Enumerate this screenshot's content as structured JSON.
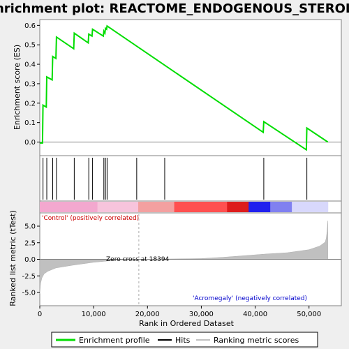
{
  "title": "Enrichment plot: REACTOME_ENDOGENOUS_STEROLS",
  "chart_data": [
    {
      "type": "line",
      "name": "enrichment-profile",
      "ylabel": "Enrichment score (ES)",
      "ylim": [
        -0.07,
        0.63
      ],
      "yticks": [
        0.0,
        0.1,
        0.2,
        0.3,
        0.4,
        0.5,
        0.6
      ],
      "ytick_labels": [
        "0.0",
        "0.1",
        "0.2",
        "0.3",
        "0.4",
        "0.5",
        "0.6"
      ],
      "xlim": [
        0,
        56000
      ],
      "points_x": [
        0,
        500,
        600,
        1200,
        1300,
        2300,
        2400,
        3000,
        3100,
        6300,
        6400,
        9000,
        9100,
        9700,
        9800,
        11800,
        11900,
        12100,
        12200,
        12400,
        12500,
        41500,
        41600,
        49500,
        49600,
        53500
      ],
      "points_y": [
        -0.005,
        -0.005,
        0.19,
        0.18,
        0.335,
        0.32,
        0.44,
        0.43,
        0.54,
        0.48,
        0.56,
        0.51,
        0.555,
        0.545,
        0.58,
        0.545,
        0.57,
        0.56,
        0.585,
        0.58,
        0.597,
        0.05,
        0.105,
        -0.04,
        0.072,
        0.0
      ],
      "color": "#00dd00"
    },
    {
      "type": "scatter",
      "name": "hits",
      "x": [
        600,
        1300,
        2400,
        3100,
        6400,
        9100,
        9800,
        11900,
        12200,
        12500,
        18000,
        23200,
        41600,
        49600
      ]
    },
    {
      "type": "area",
      "name": "ranking-metric",
      "xlabel": "Rank in Ordered Dataset",
      "ylabel": "Ranked list metric (tTest)",
      "ylim": [
        -7.0,
        7.0
      ],
      "yticks": [
        -5.0,
        -2.5,
        0.0,
        2.5,
        5.0
      ],
      "ytick_labels": [
        "-5.0",
        "-2.5",
        "0.0",
        "2.5",
        "5.0"
      ],
      "xticks": [
        0,
        10000,
        20000,
        30000,
        40000,
        50000
      ],
      "xtick_labels": [
        "0",
        "10,000",
        "20,000",
        "30,000",
        "40,000",
        "50,000"
      ],
      "x": [
        0,
        150,
        400,
        800,
        1500,
        3000,
        6000,
        10000,
        14000,
        18394,
        24000,
        30000,
        34000,
        38000,
        42000,
        46000,
        50000,
        52000,
        53000,
        53200,
        53350,
        53500
      ],
      "values": [
        -5.2,
        -3.6,
        -2.8,
        -2.2,
        -1.8,
        -1.3,
        -0.9,
        -0.45,
        -0.15,
        0.0,
        0.05,
        0.12,
        0.3,
        0.55,
        0.8,
        1.0,
        1.45,
        2.0,
        2.6,
        3.2,
        4.2,
        5.8
      ],
      "zero_cross": 18394,
      "zero_cross_label": "Zero cross at 18394",
      "positive_label": "'Control' (positively correlated)",
      "negative_label": "'Acromegaly' (negatively correlated)",
      "positive_color": "#cc0000",
      "negative_color": "#0000cc"
    }
  ],
  "legend": {
    "position": "bottom",
    "items": [
      {
        "label": "Enrichment profile",
        "color": "#00dd00"
      },
      {
        "label": "Hits",
        "color": "#000000"
      },
      {
        "label": "Ranking metric scores",
        "color": "#c0c0c0"
      }
    ]
  }
}
